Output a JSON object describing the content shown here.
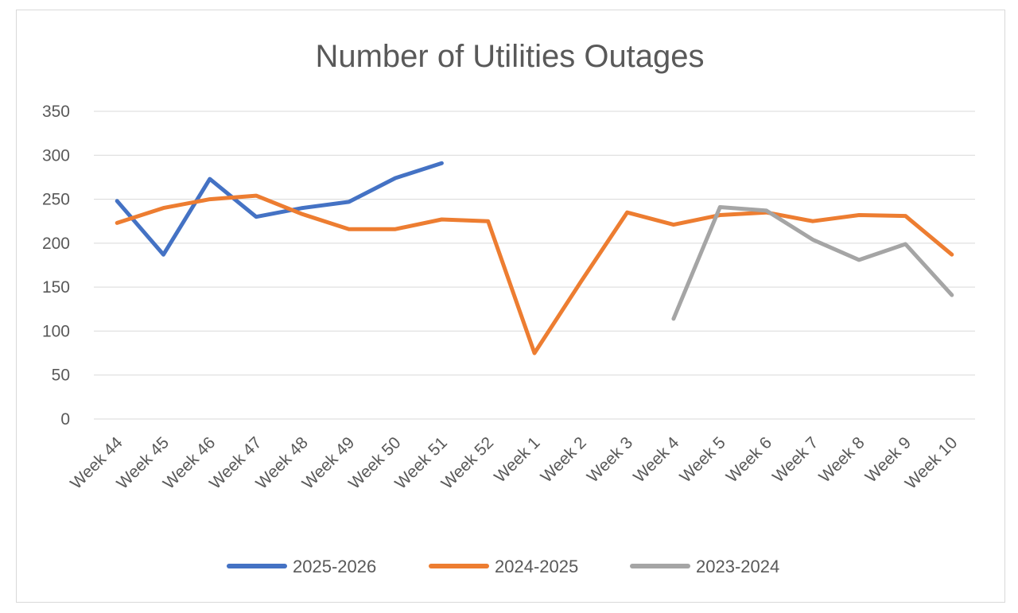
{
  "chart_data": {
    "type": "line",
    "title": "Number of Utilities Outages",
    "xlabel": "",
    "ylabel": "",
    "ylim": [
      0,
      350
    ],
    "yticks": [
      0,
      50,
      100,
      150,
      200,
      250,
      300,
      350
    ],
    "grid": true,
    "legend_position": "bottom",
    "categories": [
      "Week 44",
      "Week 45",
      "Week 46",
      "Week 47",
      "Week 48",
      "Week 49",
      "Week 50",
      "Week 51",
      "Week 52",
      "Week 1",
      "Week 2",
      "Week 3",
      "Week 4",
      "Week 5",
      "Week 6",
      "Week 7",
      "Week 8",
      "Week 9",
      "Week 10"
    ],
    "series": [
      {
        "name": "2025-2026",
        "color": "#4472c4",
        "values": [
          248,
          187,
          273,
          230,
          240,
          247,
          274,
          291,
          null,
          null,
          null,
          null,
          null,
          null,
          null,
          null,
          null,
          null,
          null
        ]
      },
      {
        "name": "2024-2025",
        "color": "#ed7d31",
        "values": [
          223,
          240,
          250,
          254,
          233,
          216,
          216,
          227,
          225,
          75,
          156,
          235,
          221,
          232,
          235,
          225,
          232,
          231,
          187
        ]
      },
      {
        "name": "2023-2024",
        "color": "#a5a5a5",
        "values": [
          null,
          null,
          null,
          null,
          null,
          null,
          null,
          null,
          null,
          null,
          null,
          null,
          114,
          241,
          237,
          204,
          181,
          199,
          141
        ]
      }
    ]
  }
}
